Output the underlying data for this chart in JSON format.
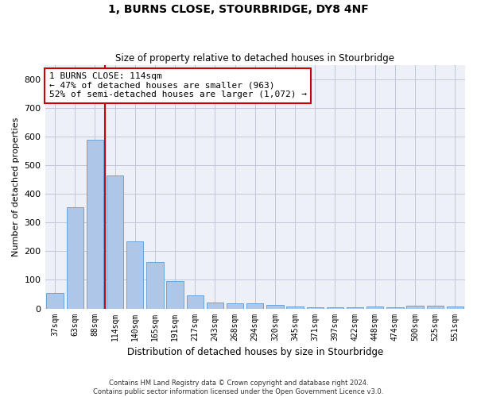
{
  "title": "1, BURNS CLOSE, STOURBRIDGE, DY8 4NF",
  "subtitle": "Size of property relative to detached houses in Stourbridge",
  "xlabel": "Distribution of detached houses by size in Stourbridge",
  "ylabel": "Number of detached properties",
  "bar_labels": [
    "37sqm",
    "63sqm",
    "88sqm",
    "114sqm",
    "140sqm",
    "165sqm",
    "191sqm",
    "217sqm",
    "243sqm",
    "268sqm",
    "294sqm",
    "320sqm",
    "345sqm",
    "371sqm",
    "397sqm",
    "422sqm",
    "448sqm",
    "474sqm",
    "500sqm",
    "525sqm",
    "551sqm"
  ],
  "bar_values": [
    55,
    355,
    590,
    465,
    235,
    162,
    95,
    45,
    20,
    18,
    18,
    14,
    8,
    5,
    5,
    5,
    8,
    3,
    10,
    10,
    6
  ],
  "bar_color": "#aec6e8",
  "bar_edge_color": "#5b9bd5",
  "vline_bar_index": 3,
  "vline_color": "#cc0000",
  "annotation_text": "1 BURNS CLOSE: 114sqm\n← 47% of detached houses are smaller (963)\n52% of semi-detached houses are larger (1,072) →",
  "annotation_box_color": "#cc0000",
  "ylim": [
    0,
    850
  ],
  "yticks": [
    0,
    100,
    200,
    300,
    400,
    500,
    600,
    700,
    800
  ],
  "grid_color": "#c0c8d8",
  "bg_color": "#edf0f7",
  "footer1": "Contains HM Land Registry data © Crown copyright and database right 2024.",
  "footer2": "Contains public sector information licensed under the Open Government Licence v3.0."
}
